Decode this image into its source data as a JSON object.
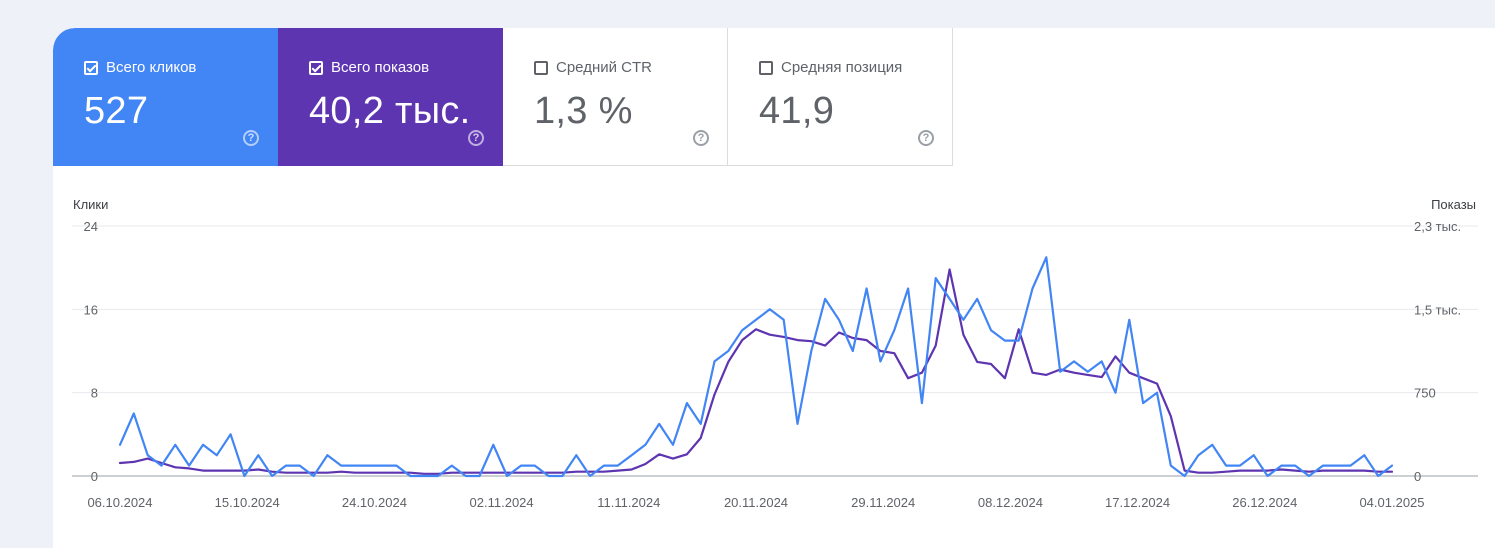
{
  "metrics": [
    {
      "label": "Всего кликов",
      "value": "527",
      "checked": true
    },
    {
      "label": "Всего показов",
      "value": "40,2 тыс.",
      "checked": true
    },
    {
      "label": "Средний CTR",
      "value": "1,3 %",
      "checked": false
    },
    {
      "label": "Средняя позиция",
      "value": "41,9",
      "checked": false
    }
  ],
  "help_icon": "?",
  "colors": {
    "clicks": "#4285f4",
    "impressions": "#5e35b1",
    "grid": "#e8eaed",
    "baseline": "#9aa0a6"
  },
  "chart_data": {
    "type": "line",
    "y_left_label": "Клики",
    "y_right_label": "Показы",
    "y_left_ticks": [
      "24",
      "16",
      "8",
      "0"
    ],
    "y_right_ticks": [
      "2,3 тыс.",
      "1,5 тыс.",
      "750",
      "0"
    ],
    "y_left_range": [
      0,
      24
    ],
    "y_right_range": [
      0,
      2300
    ],
    "x_tick_labels": [
      "06.10.2024",
      "15.10.2024",
      "24.10.2024",
      "02.11.2024",
      "11.11.2024",
      "20.11.2024",
      "29.11.2024",
      "08.12.2024",
      "17.12.2024",
      "26.12.2024",
      "04.01.2025"
    ],
    "x_start": "06.10.2024",
    "x_end": "04.01.2025",
    "series": [
      {
        "name": "Клики",
        "axis": "left",
        "values": [
          3,
          6,
          2,
          1,
          3,
          1,
          3,
          2,
          4,
          0,
          2,
          0,
          1,
          1,
          0,
          2,
          1,
          1,
          1,
          1,
          1,
          0,
          0,
          0,
          1,
          0,
          0,
          3,
          0,
          1,
          1,
          0,
          0,
          2,
          0,
          1,
          1,
          2,
          3,
          5,
          3,
          7,
          5,
          11,
          12,
          14,
          15,
          16,
          15,
          5,
          12,
          17,
          15,
          12,
          18,
          11,
          14,
          18,
          7,
          19,
          17,
          15,
          17,
          14,
          13,
          13,
          18,
          21,
          10,
          11,
          10,
          11,
          8,
          15,
          7,
          8,
          1,
          0,
          2,
          3,
          1,
          1,
          2,
          0,
          1,
          1,
          0,
          1,
          1,
          1,
          2,
          0,
          1
        ]
      },
      {
        "name": "Показы",
        "axis": "right",
        "values": [
          120,
          130,
          160,
          120,
          80,
          70,
          50,
          50,
          50,
          50,
          60,
          40,
          30,
          30,
          30,
          30,
          40,
          30,
          30,
          30,
          30,
          30,
          20,
          20,
          30,
          30,
          30,
          30,
          30,
          30,
          30,
          30,
          30,
          40,
          40,
          40,
          50,
          60,
          110,
          200,
          160,
          200,
          350,
          750,
          1050,
          1250,
          1350,
          1300,
          1280,
          1250,
          1240,
          1200,
          1320,
          1270,
          1250,
          1150,
          1130,
          900,
          950,
          1200,
          1900,
          1300,
          1050,
          1030,
          900,
          1350,
          950,
          930,
          980,
          950,
          930,
          910,
          1100,
          950,
          900,
          850,
          550,
          50,
          30,
          30,
          40,
          50,
          50,
          50,
          60,
          50,
          40,
          50,
          50,
          50,
          50,
          40,
          40
        ]
      }
    ]
  }
}
